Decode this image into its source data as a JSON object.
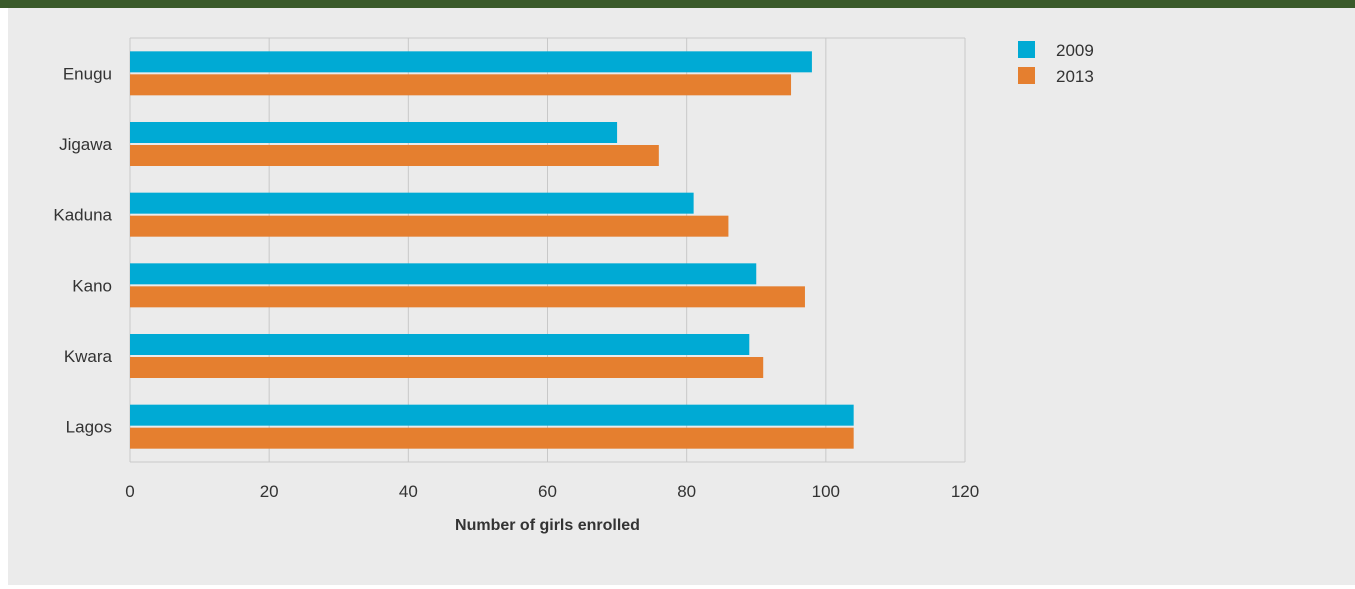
{
  "chart_data": {
    "type": "bar",
    "orientation": "horizontal",
    "categories": [
      "Enugu",
      "Jigawa",
      "Kaduna",
      "Kano",
      "Kwara",
      "Lagos"
    ],
    "series": [
      {
        "name": "2009",
        "color": "#00aad4",
        "values": [
          98,
          70,
          81,
          90,
          89,
          104
        ]
      },
      {
        "name": "2013",
        "color": "#e57f2f",
        "values": [
          95,
          76,
          86,
          97,
          91,
          104
        ]
      }
    ],
    "xlabel": "Number of girls enrolled",
    "ylabel": "",
    "xlim": [
      0,
      120
    ],
    "xticks": [
      "0",
      "20",
      "40",
      "60",
      "80",
      "100",
      "120"
    ],
    "grid": "vertical",
    "legend_position": "top-right"
  },
  "colors": {
    "header_band": "#3a5a2a",
    "panel_background": "#ebebeb",
    "grid": "#c8c8c8"
  }
}
